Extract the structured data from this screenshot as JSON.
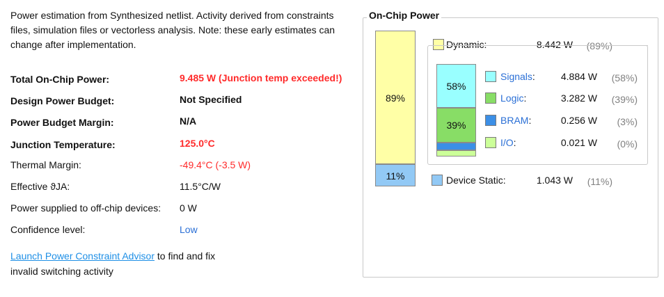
{
  "intro": "Power estimation from Synthesized netlist. Activity derived from constraints files, simulation files or vectorless analysis. Note: these early estimates can change after implementation.",
  "summary": [
    {
      "label": "Total On-Chip Power:",
      "value": "9.485 W (Junction temp exceeded!)",
      "bold": true,
      "color": "#ff2a2a"
    },
    {
      "label": "Design Power Budget:",
      "value": "Not Specified",
      "bold": true,
      "color": "#111111"
    },
    {
      "label": "Power Budget Margin:",
      "value": "N/A",
      "bold": true,
      "color": "#111111"
    },
    {
      "label": "Junction Temperature:",
      "value": "125.0°C",
      "bold": true,
      "color": "#ff2a2a"
    },
    {
      "label": "Thermal Margin:",
      "value": "-49.4°C (-3.5 W)",
      "bold": false,
      "color": "#ff2a2a"
    },
    {
      "label": "Effective ϑJA:",
      "value": "11.5°C/W",
      "bold": false,
      "color": "#111111"
    },
    {
      "label": "Power supplied to off-chip devices:",
      "value": "0 W",
      "bold": false,
      "color": "#111111"
    },
    {
      "label": "Confidence level:",
      "value": "Low",
      "bold": false,
      "color": "#2a6fd6"
    }
  ],
  "footer": {
    "link": "Launch Power Constraint Advisor",
    "text1": " to find and fix",
    "text2": "invalid switching activity"
  },
  "chart": {
    "title": "On-Chip Power",
    "dynamic": {
      "label": "Dynamic:",
      "watts": "8.442 W",
      "pct": "(89%)",
      "bar_pct": "89%",
      "fraction": 0.89,
      "color": "#ffffa6"
    },
    "static": {
      "label": "Device Static:",
      "watts": "1.043 W",
      "pct": "(11%)",
      "bar_pct": "11%",
      "fraction": 0.11,
      "color": "#92c9f5"
    },
    "breakdown": [
      {
        "label": "Signals",
        "sep": ":",
        "watts": "4.884 W",
        "pct": "(58%)",
        "bar_pct": "58%",
        "fraction": 0.58,
        "color": "#99ffff"
      },
      {
        "label": "Logic",
        "sep": ":",
        "watts": "3.282 W",
        "pct": "(39%)",
        "bar_pct": "39%",
        "fraction": 0.39,
        "color": "#88dd66"
      },
      {
        "label": "BRAM",
        "sep": ":",
        "watts": "0.256 W",
        "pct": "(3%)",
        "bar_pct": "",
        "fraction": 0.03,
        "color": "#3c8fe6"
      },
      {
        "label": "I/O",
        "sep": ":",
        "watts": "0.021 W",
        "pct": "(0%)",
        "bar_pct": "",
        "fraction": 0.003,
        "color": "#ccff99"
      }
    ]
  }
}
